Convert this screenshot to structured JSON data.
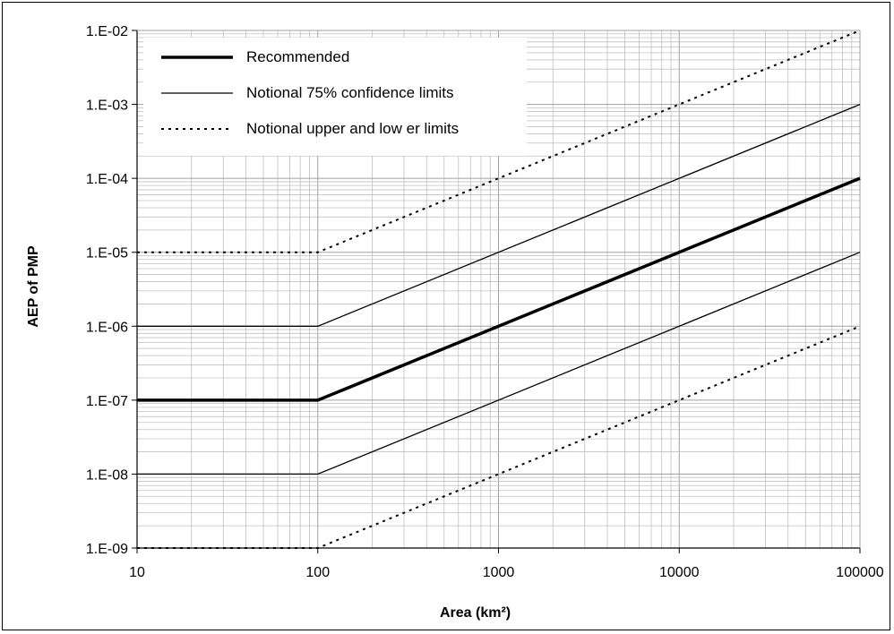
{
  "chart_data": {
    "type": "line",
    "title": "",
    "xlabel": "Area (km²)",
    "ylabel": "AEP of PMP",
    "x_scale": "log",
    "y_scale": "log",
    "xlim": [
      10,
      100000
    ],
    "ylim": [
      1e-09,
      0.01
    ],
    "x_ticks": [
      10,
      100,
      1000,
      10000,
      100000
    ],
    "x_tick_labels": [
      "10",
      "100",
      "1000",
      "10000",
      "100000"
    ],
    "y_ticks": [
      1e-09,
      1e-08,
      1e-07,
      1e-06,
      1e-05,
      0.0001,
      0.001,
      0.01
    ],
    "y_tick_labels": [
      "1.E-09",
      "1.E-08",
      "1.E-07",
      "1.E-06",
      "1.E-05",
      "1.E-04",
      "1.E-03",
      "1.E-02"
    ],
    "grid": "major and minor",
    "legend_position": "top-left",
    "series": [
      {
        "name": "Recommended",
        "style": "thick-solid",
        "x": [
          10,
          100,
          100000
        ],
        "y": [
          1e-07,
          1e-07,
          0.0001
        ]
      },
      {
        "name": "Notional 75% confidence limits",
        "style": "thin-solid",
        "x": [
          10,
          100,
          100000
        ],
        "y": [
          1e-06,
          1e-06,
          0.001
        ]
      },
      {
        "name": "",
        "style": "thin-solid",
        "x": [
          10,
          100,
          100000
        ],
        "y": [
          1e-08,
          1e-08,
          1e-05
        ]
      },
      {
        "name": "Notional upper and low er limits",
        "style": "dotted",
        "x": [
          10,
          100,
          100000
        ],
        "y": [
          1e-05,
          1e-05,
          0.01
        ]
      },
      {
        "name": "",
        "style": "dotted",
        "x": [
          10,
          100,
          100000
        ],
        "y": [
          1e-09,
          1e-09,
          1e-06
        ]
      }
    ],
    "colors": {
      "line": "#000000",
      "grid": "#c0c0c0",
      "background": "#ffffff"
    }
  },
  "legend": [
    {
      "label": "Recommended",
      "style": "thick-solid"
    },
    {
      "label": "Notional 75% confidence limits",
      "style": "thin-solid"
    },
    {
      "label": "Notional upper and low er limits",
      "style": "dotted"
    }
  ]
}
